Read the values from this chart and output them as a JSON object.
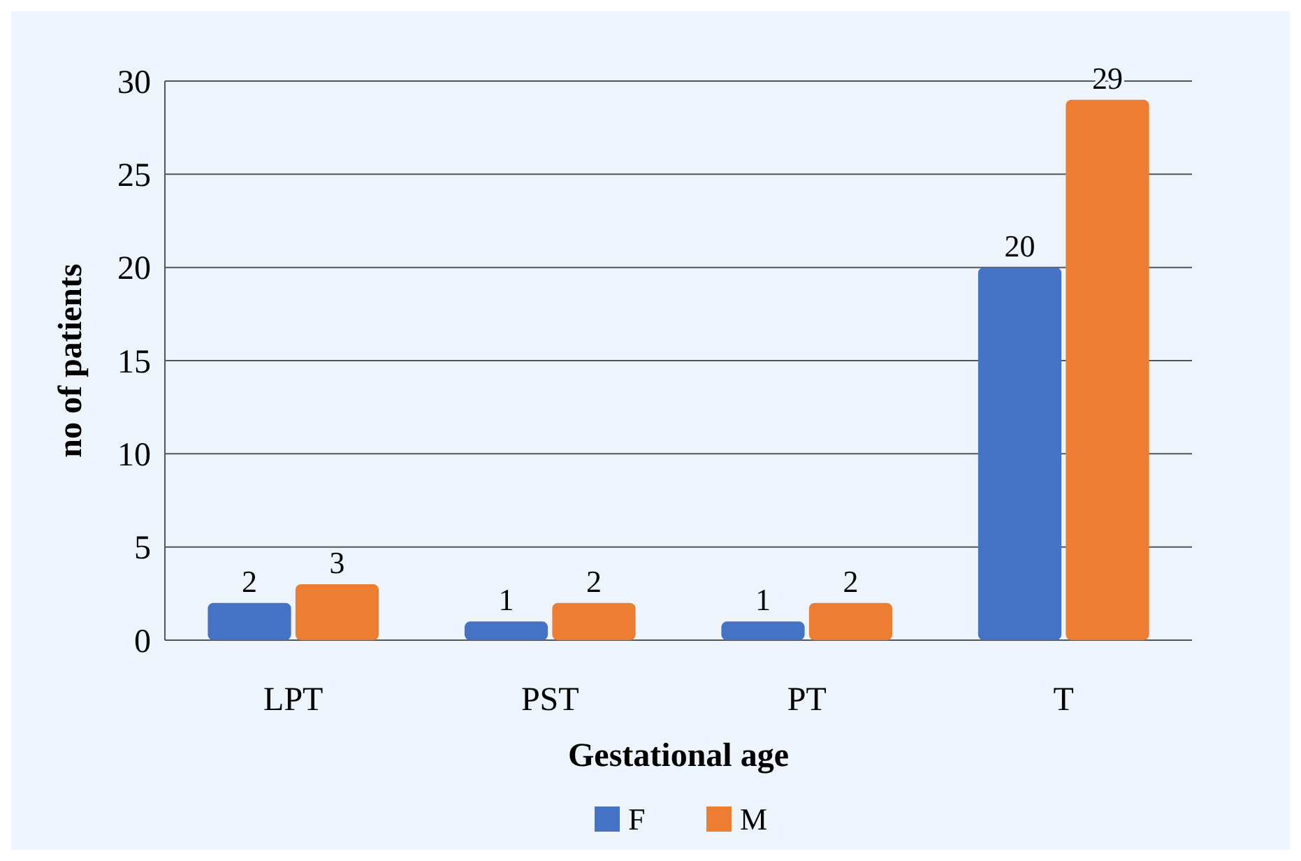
{
  "chart_data": {
    "type": "bar",
    "xlabel": "Gestational age",
    "ylabel": "no of patients",
    "categories": [
      "LPT",
      "PST",
      "PT",
      "T"
    ],
    "series": [
      {
        "name": "F",
        "color": "#4472c4",
        "values": [
          2,
          1,
          1,
          20
        ]
      },
      {
        "name": "M",
        "color": "#ed7d31",
        "values": [
          3,
          2,
          2,
          29
        ]
      }
    ],
    "ylim": [
      0,
      30
    ],
    "yticks": [
      0,
      5,
      10,
      15,
      20,
      25,
      30
    ],
    "grid": "y",
    "data_labels": true,
    "legend": "bottom"
  }
}
